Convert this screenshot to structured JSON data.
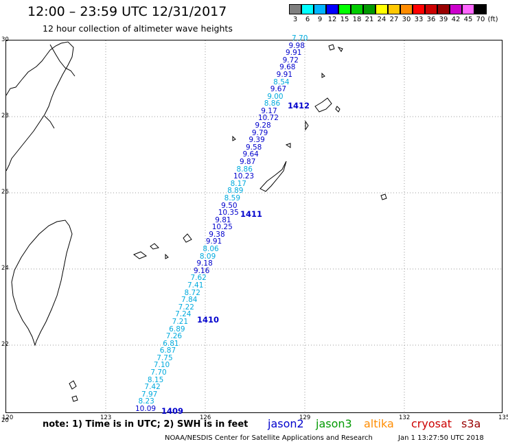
{
  "header": {
    "title": "12:00 – 23:59 UTC 12/31/2017",
    "subtitle": "12 hour collection of altimeter wave heights"
  },
  "color_scale": {
    "unit": "(ft)",
    "bins": [
      {
        "label": "3",
        "color": "#7f7f7f"
      },
      {
        "label": "6",
        "color": "#00ffff"
      },
      {
        "label": "9",
        "color": "#00b4ff"
      },
      {
        "label": "12",
        "color": "#0000ff"
      },
      {
        "label": "15",
        "color": "#00ff00"
      },
      {
        "label": "18",
        "color": "#00cc00"
      },
      {
        "label": "21",
        "color": "#009900"
      },
      {
        "label": "24",
        "color": "#ffff00"
      },
      {
        "label": "27",
        "color": "#ffc800"
      },
      {
        "label": "30",
        "color": "#ff8c00"
      },
      {
        "label": "33",
        "color": "#ff0000"
      },
      {
        "label": "36",
        "color": "#cc0000"
      },
      {
        "label": "39",
        "color": "#990000"
      },
      {
        "label": "42",
        "color": "#cc00cc"
      },
      {
        "label": "45",
        "color": "#ff66ff"
      },
      {
        "label": "70",
        "color": "#000000"
      }
    ]
  },
  "axes": {
    "lon_ticks": [
      "120",
      "123",
      "126",
      "129",
      "132",
      "135"
    ],
    "lat_ticks": [
      "30",
      "28",
      "26",
      "24",
      "22",
      "20"
    ]
  },
  "track": [
    {
      "v": "7.70",
      "c": "#00aadd"
    },
    {
      "v": "9.98",
      "c": "#0000cc"
    },
    {
      "v": "9.91",
      "c": "#0000cc"
    },
    {
      "v": "9.72",
      "c": "#0000cc"
    },
    {
      "v": "9.68",
      "c": "#0000cc"
    },
    {
      "v": "9.91",
      "c": "#0000cc"
    },
    {
      "v": "8.54",
      "c": "#00aadd"
    },
    {
      "v": "9.67",
      "c": "#0000cc"
    },
    {
      "v": "9.00",
      "c": "#00aadd"
    },
    {
      "v": "8.86",
      "c": "#00aadd"
    },
    {
      "v": "9.17",
      "c": "#0000cc"
    },
    {
      "v": "10.72",
      "c": "#0000cc"
    },
    {
      "v": "9.28",
      "c": "#0000cc"
    },
    {
      "v": "9.79",
      "c": "#0000cc"
    },
    {
      "v": "9.39",
      "c": "#0000cc"
    },
    {
      "v": "9.58",
      "c": "#0000cc"
    },
    {
      "v": "9.64",
      "c": "#0000cc"
    },
    {
      "v": "9.87",
      "c": "#0000cc"
    },
    {
      "v": "8.86",
      "c": "#00aadd"
    },
    {
      "v": "10.23",
      "c": "#0000cc"
    },
    {
      "v": "8.17",
      "c": "#00aadd"
    },
    {
      "v": "8.89",
      "c": "#00aadd"
    },
    {
      "v": "8.59",
      "c": "#00aadd"
    },
    {
      "v": "9.50",
      "c": "#0000cc"
    },
    {
      "v": "10.35",
      "c": "#0000cc"
    },
    {
      "v": "9.81",
      "c": "#0000cc"
    },
    {
      "v": "10.25",
      "c": "#0000cc"
    },
    {
      "v": "9.38",
      "c": "#0000cc"
    },
    {
      "v": "9.91",
      "c": "#0000cc"
    },
    {
      "v": "8.06",
      "c": "#00aadd"
    },
    {
      "v": "8.09",
      "c": "#00aadd"
    },
    {
      "v": "9.18",
      "c": "#0000cc"
    },
    {
      "v": "9.16",
      "c": "#0000cc"
    },
    {
      "v": "7.62",
      "c": "#00aadd"
    },
    {
      "v": "7.41",
      "c": "#00aadd"
    },
    {
      "v": "8.72",
      "c": "#00aadd"
    },
    {
      "v": "7.84",
      "c": "#00aadd"
    },
    {
      "v": "7.22",
      "c": "#00aadd"
    },
    {
      "v": "7.24",
      "c": "#00aadd"
    },
    {
      "v": "7.21",
      "c": "#00aadd"
    },
    {
      "v": "6.89",
      "c": "#00aadd"
    },
    {
      "v": "7.26",
      "c": "#00aadd"
    },
    {
      "v": "6.81",
      "c": "#00aadd"
    },
    {
      "v": "6.87",
      "c": "#00aadd"
    },
    {
      "v": "7.75",
      "c": "#00aadd"
    },
    {
      "v": "7.10",
      "c": "#00aadd"
    },
    {
      "v": "7.70",
      "c": "#00aadd"
    },
    {
      "v": "8.15",
      "c": "#00aadd"
    },
    {
      "v": "7.42",
      "c": "#00aadd"
    },
    {
      "v": "7.97",
      "c": "#00aadd"
    },
    {
      "v": "8.23",
      "c": "#00aadd"
    },
    {
      "v": "10.09",
      "c": "#0000cc"
    }
  ],
  "revs": [
    "1412",
    "1411",
    "1410",
    "1409"
  ],
  "note": "note: 1) Time is in UTC; 2) SWH is in feet",
  "legend": [
    {
      "name": "jason2",
      "color": "#0000cc"
    },
    {
      "name": "jason3",
      "color": "#009900"
    },
    {
      "name": "altika",
      "color": "#ff8c00"
    },
    {
      "name": "cryosat",
      "color": "#cc0000"
    },
    {
      "name": "s3a",
      "color": "#990000"
    }
  ],
  "footer": {
    "credit": "NOAA/NESDIS Center for Satellite Applications and Research",
    "timestamp": "Jan  1 13:27:50 UTC 2018"
  }
}
